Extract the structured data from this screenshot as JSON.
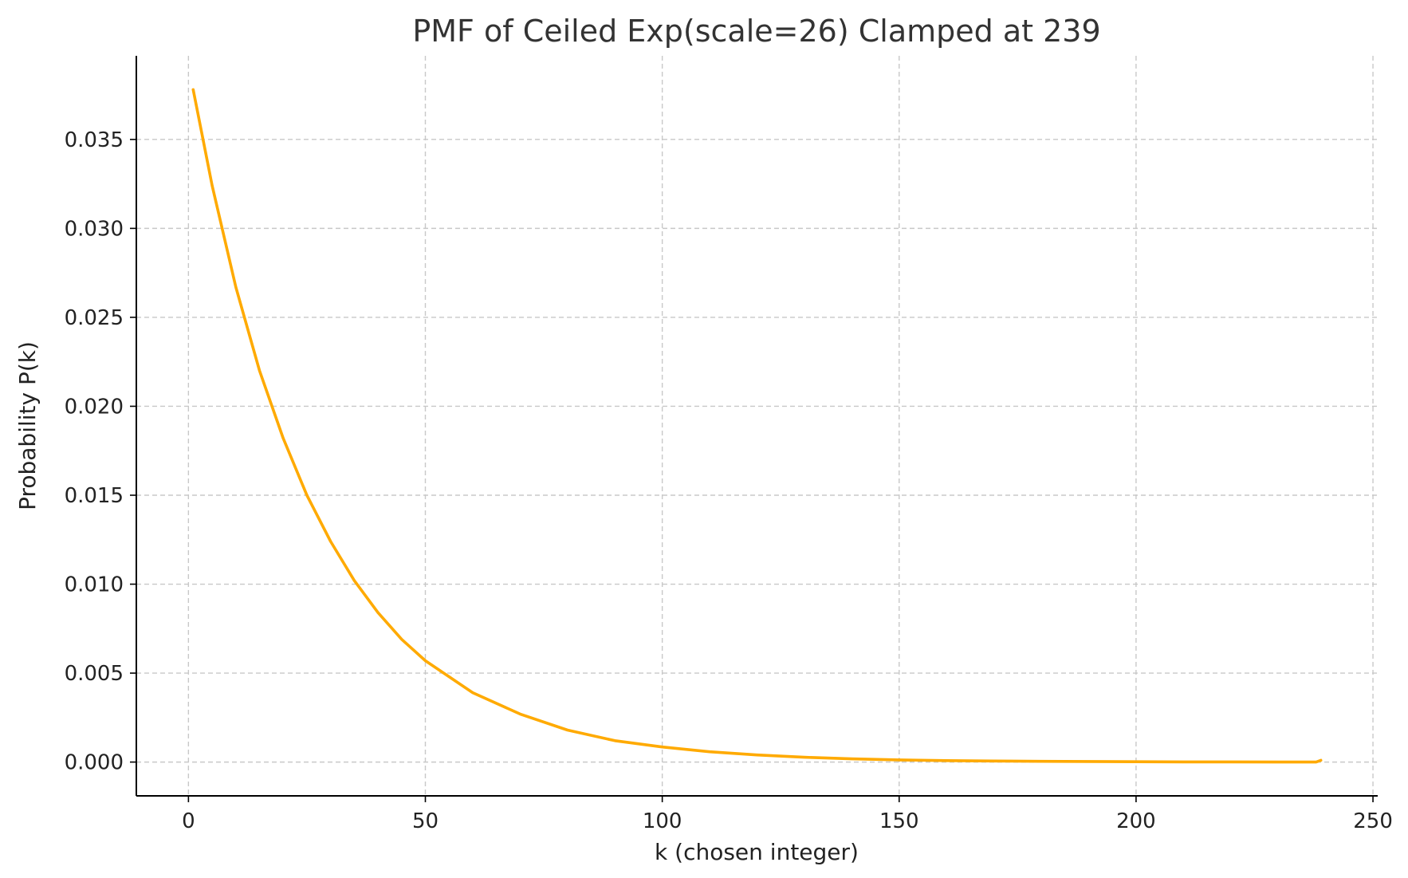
{
  "chart_data": {
    "type": "line",
    "title": "PMF of Ceiled Exp(scale=26) Clamped at 239",
    "xlabel": "k (chosen integer)",
    "ylabel": "Probability P(k)",
    "xlim": [
      -11,
      251
    ],
    "ylim": [
      -0.0019,
      0.0397
    ],
    "x_ticks": [
      0,
      50,
      100,
      150,
      200,
      250
    ],
    "x_tick_labels": [
      "0",
      "50",
      "100",
      "150",
      "200",
      "250"
    ],
    "y_ticks": [
      0.0,
      0.005,
      0.01,
      0.015,
      0.02,
      0.025,
      0.03,
      0.035
    ],
    "y_tick_labels": [
      "0.000",
      "0.005",
      "0.010",
      "0.015",
      "0.020",
      "0.025",
      "0.030",
      "0.035"
    ],
    "grid": true,
    "series": [
      {
        "color": "#FFAA00",
        "x": [
          1,
          5,
          10,
          15,
          20,
          25,
          30,
          35,
          40,
          45,
          50,
          60,
          70,
          80,
          90,
          100,
          110,
          120,
          130,
          140,
          150,
          160,
          170,
          180,
          190,
          200,
          210,
          220,
          230,
          238,
          239
        ],
        "y": [
          0.0378,
          0.0324,
          0.0267,
          0.022,
          0.0182,
          0.015,
          0.0124,
          0.0102,
          0.0084,
          0.0069,
          0.0057,
          0.0039,
          0.0027,
          0.0018,
          0.0012,
          0.00085,
          0.00058,
          0.0004,
          0.00027,
          0.00018,
          0.00012,
          8e-05,
          6e-05,
          4e-05,
          3e-05,
          2e-05,
          1e-05,
          1e-05,
          0.0,
          0.0,
          0.0001
        ]
      }
    ]
  }
}
